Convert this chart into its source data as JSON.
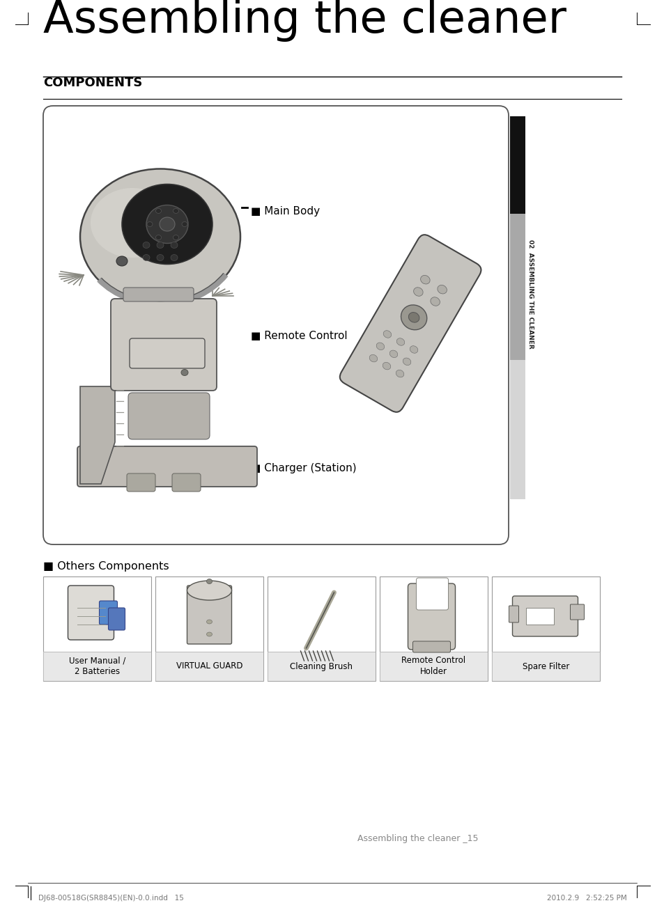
{
  "page_bg": "#ffffff",
  "title": "Assembling the cleaner",
  "section_header": "COMPONENTS",
  "main_box_labels": [
    "Main Body",
    "Remote Control",
    "Charger (Station)"
  ],
  "others_label": "■ Others Components",
  "others_items": [
    "User Manual /\n2 Batteries",
    "VIRTUAL GUARD",
    "Cleaning Brush",
    "Remote Control\nHolder",
    "Spare Filter"
  ],
  "footer_left": "DJ68-00518G(SR8845)(EN)-0.0.indd   15",
  "footer_right": "2010.2.9   2:52:25 PM",
  "page_number_text": "Assembling the cleaner _15",
  "side_tab_text": "02  ASSEMBLING THE CLEANER",
  "box_border_color": "#666666",
  "title_font_size": 46,
  "section_font_size": 13,
  "label_font_size": 11,
  "footer_font_size": 8,
  "page_num_font_size": 9,
  "side_black_color": "#111111",
  "side_gray_color": "#b0b0b0",
  "side_lighter_color": "#d8d8d8"
}
